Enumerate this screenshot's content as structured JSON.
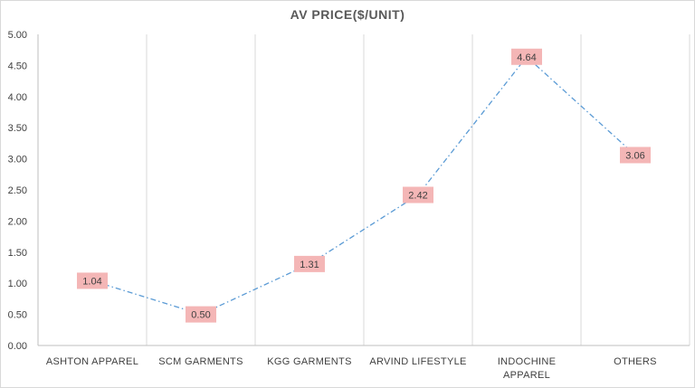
{
  "chart_data": {
    "type": "line",
    "title": "AV PRICE($/UNIT)",
    "categories": [
      [
        "ASHTON APPAREL"
      ],
      [
        "SCM GARMENTS"
      ],
      [
        "KGG GARMENTS"
      ],
      [
        "ARVIND LIFESTYLE"
      ],
      [
        "INDOCHINE",
        "APPAREL"
      ],
      [
        "OTHERS"
      ]
    ],
    "values": [
      1.04,
      0.5,
      1.31,
      2.42,
      4.64,
      3.06
    ],
    "data_labels": [
      "1.04",
      "0.50",
      "1.31",
      "2.42",
      "4.64",
      "3.06"
    ],
    "ylim": [
      0,
      5
    ],
    "yticks": [
      "0.00",
      "0.50",
      "1.00",
      "1.50",
      "2.00",
      "2.50",
      "3.00",
      "3.50",
      "4.00",
      "4.50",
      "5.00"
    ],
    "ytick_values": [
      0,
      0.5,
      1,
      1.5,
      2,
      2.5,
      3,
      3.5,
      4,
      4.5,
      5
    ],
    "grid": "vertical",
    "line_color": "#5b9bd5",
    "label_color": "#f4b6b6",
    "line_style": "dash-dot"
  }
}
